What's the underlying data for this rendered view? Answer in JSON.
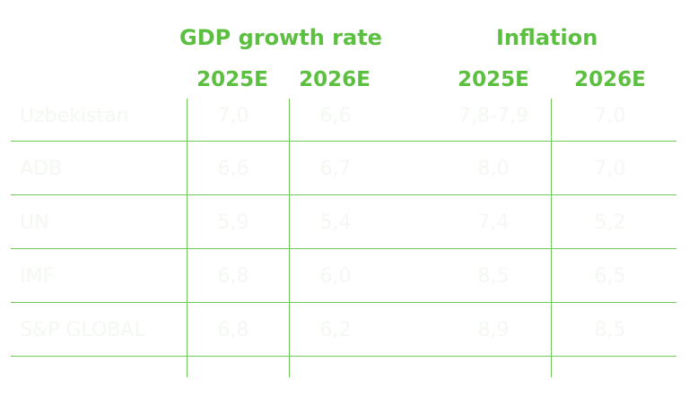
{
  "chart_data": {
    "type": "table",
    "column_groups": [
      {
        "label": "GDP growth rate",
        "columns": [
          "2025E",
          "2026E"
        ]
      },
      {
        "label": "Inflation",
        "columns": [
          "2025E",
          "2026E"
        ]
      }
    ],
    "rows": [
      {
        "source": "Uzbekistan",
        "values": [
          "7,0",
          "6,6",
          "7,8-7,9",
          "7,0"
        ]
      },
      {
        "source": "ADB",
        "values": [
          "6,6",
          "6,7",
          "8,0",
          "7,0"
        ]
      },
      {
        "source": "UN",
        "values": [
          "5,9",
          "5,4",
          "7,4",
          "5,2"
        ]
      },
      {
        "source": "IMF",
        "values": [
          "6,8",
          "6,0",
          "8,5",
          "6,5"
        ]
      },
      {
        "source": "S&P GLOBAL",
        "values": [
          "6,8",
          "6,2",
          "8,9",
          "8,5"
        ]
      }
    ]
  },
  "colors": {
    "header_green": "#5bbf3f",
    "grid_green": "#6fc957",
    "cell_text": "#f4f8f2"
  }
}
